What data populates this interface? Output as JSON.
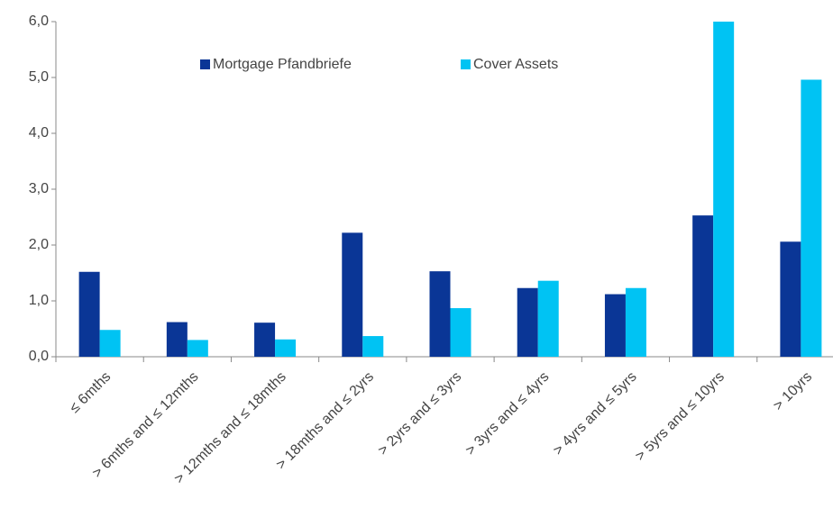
{
  "chart_data": {
    "type": "bar",
    "categories": [
      "≤ 6mths",
      "> 6mths and ≤ 12mths",
      "> 12mths and ≤ 18mths",
      "> 18mths and ≤ 2yrs",
      "> 2yrs and ≤ 3yrs",
      "> 3yrs and ≤ 4yrs",
      "> 4yrs and ≤ 5yrs",
      "> 5yrs and ≤ 10yrs",
      "> 10yrs"
    ],
    "series": [
      {
        "name": "Mortgage Pfandbriefe",
        "color": "#0a3696",
        "values": [
          1.52,
          0.62,
          0.61,
          2.22,
          1.53,
          1.23,
          1.12,
          2.53,
          2.06
        ]
      },
      {
        "name": "Cover Assets",
        "color": "#00c3f3",
        "values": [
          0.48,
          0.3,
          0.31,
          0.37,
          0.87,
          1.36,
          1.23,
          6.0,
          4.96
        ]
      }
    ],
    "ylim": [
      0,
      6
    ],
    "yticks": [
      {
        "value": 0,
        "label": "0,0"
      },
      {
        "value": 1,
        "label": "1,0"
      },
      {
        "value": 2,
        "label": "2,0"
      },
      {
        "value": 3,
        "label": "3,0"
      },
      {
        "value": 4,
        "label": "4,0"
      },
      {
        "value": 5,
        "label": "5,0"
      },
      {
        "value": 6,
        "label": "6,0"
      }
    ],
    "legend": "top"
  }
}
